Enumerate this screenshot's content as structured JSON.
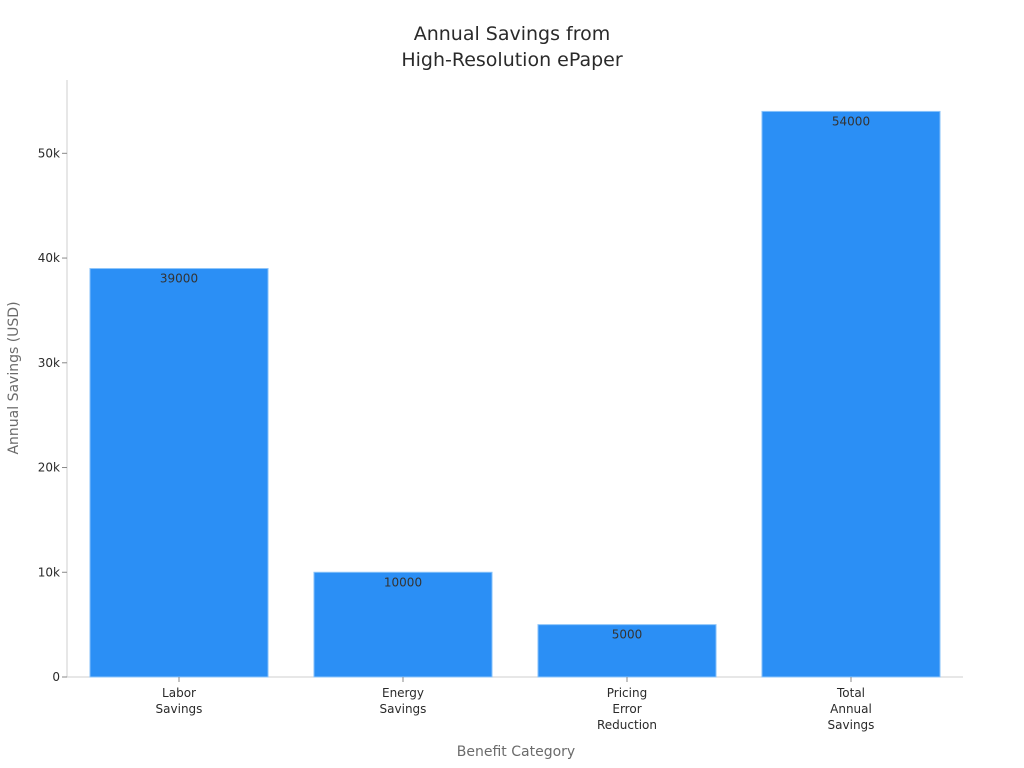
{
  "chart_data": {
    "type": "bar",
    "title": [
      "Annual Savings from",
      "High-Resolution ePaper"
    ],
    "xlabel": "Benefit Category",
    "ylabel": "Annual Savings (USD)",
    "categories": [
      [
        "Labor",
        "Savings"
      ],
      [
        "Energy",
        "Savings"
      ],
      [
        "Pricing",
        "Error",
        "Reduction"
      ],
      [
        "Total",
        "Annual",
        "Savings"
      ]
    ],
    "values": [
      39000,
      10000,
      5000,
      54000
    ],
    "value_labels": [
      "39000",
      "10000",
      "5000",
      "54000"
    ],
    "ylim": [
      0,
      57000
    ],
    "yticks": [
      0,
      10000,
      20000,
      30000,
      40000,
      50000
    ],
    "ytick_labels": [
      "0",
      "10k",
      "20k",
      "30k",
      "40k",
      "50k"
    ],
    "grid": false,
    "legend": "none",
    "colors": {
      "bar": "#2b8ff5",
      "bar_edge": "#8cc4fa",
      "axis": "#cfcfcf"
    }
  }
}
